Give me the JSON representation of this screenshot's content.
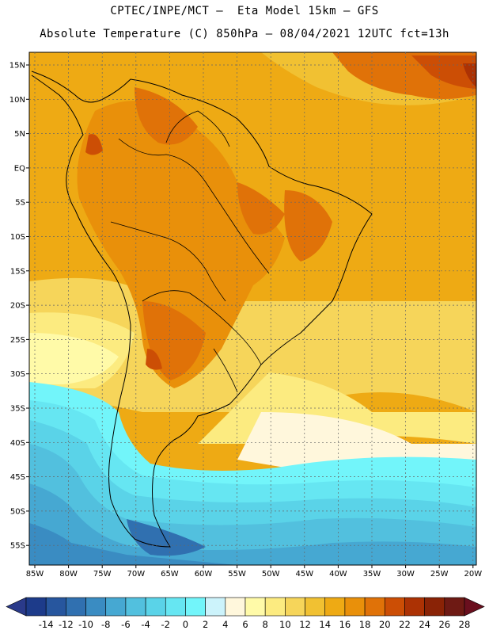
{
  "header": {
    "line1": "CPTEC/INPE/MCT —  Eta Model 15km — GFS",
    "line2": "Absolute Temperature (C) 850hPa — 08/04/2021 12UTC fct=13h"
  },
  "axes": {
    "lat_labels": [
      "15N",
      "10N",
      "5N",
      "EQ",
      "5S",
      "10S",
      "15S",
      "20S",
      "25S",
      "30S",
      "35S",
      "40S",
      "45S",
      "50S",
      "55S"
    ],
    "lon_labels": [
      "85W",
      "80W",
      "75W",
      "70W",
      "65W",
      "60W",
      "55W",
      "50W",
      "45W",
      "40W",
      "35W",
      "30W",
      "25W",
      "20W"
    ]
  },
  "colorbar": {
    "labels": [
      "-14",
      "-12",
      "-10",
      "-8",
      "-6",
      "-4",
      "-2",
      "0",
      "2",
      "4",
      "6",
      "8",
      "10",
      "12",
      "14",
      "16",
      "18",
      "20",
      "22",
      "24",
      "26",
      "28"
    ],
    "colors": [
      "#1d3b8a",
      "#27569e",
      "#3070b0",
      "#3a8cc2",
      "#46a8d2",
      "#52c0de",
      "#5ad3e8",
      "#66e6f2",
      "#72f5fa",
      "#ccf3fb",
      "#fff7dc",
      "#fffaa8",
      "#fceb80",
      "#f6d55a",
      "#f1c132",
      "#eeaa14",
      "#e9900a",
      "#e07208",
      "#cc4e05",
      "#ac3204",
      "#8a2306",
      "#6e1a14"
    ]
  }
}
